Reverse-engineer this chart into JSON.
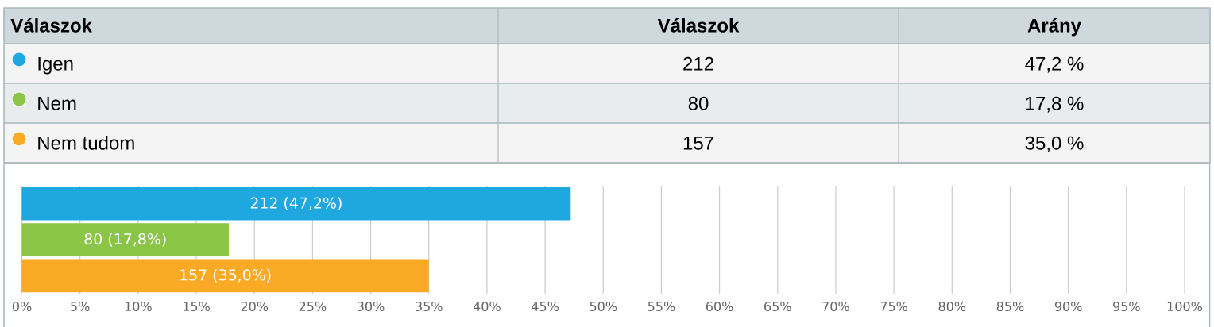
{
  "chart_data": [
    {
      "type": "other",
      "legend_title": "Válaszok",
      "categories": [
        "Igen",
        "Nem",
        "Nem tudom"
      ],
      "colors": [
        "#1fa8e0",
        "#8bc548",
        "#fbaa25"
      ],
      "data_labels": true,
      "series": [
        {
          "name": "Válaszok",
          "colors": [
            "#f4f4f4",
            "#e8ecec",
            "#f4f4f4"
          ],
          "values": [
            212,
            80,
            157
          ]
        },
        {
          "name": "Arány",
          "values": [
            47.2,
            17.8,
            35.0
          ],
          "value_labels": [
            "47,2 %",
            "17,8 %",
            "35,0 %"
          ]
        }
      ]
    },
    {
      "type": "bar",
      "orientation": "horizontal",
      "categories": [
        null,
        null,
        null
      ],
      "colors": [
        "#1fa8e0",
        "#8bc548",
        "#fbaa25"
      ],
      "values": [
        47.2,
        17.8,
        35.0
      ],
      "value_labels": [
        "212 (47,2%)",
        "80 (17,8%)",
        "157 (35,0%)"
      ],
      "xlim": [
        0,
        100
      ],
      "xticks": [
        {
          "value": 0,
          "label": "0%"
        },
        {
          "value": 5,
          "label": "5%"
        },
        {
          "value": 10,
          "label": "10%"
        },
        {
          "value": 15,
          "label": "15%"
        },
        {
          "value": 20,
          "label": "20%"
        },
        {
          "value": 25,
          "label": "25%"
        },
        {
          "value": 30,
          "label": "30%"
        },
        {
          "value": 35,
          "label": "35%"
        },
        {
          "value": 40,
          "label": "40%"
        },
        {
          "value": 45,
          "label": "45%"
        },
        {
          "value": 50,
          "label": "50%"
        },
        {
          "value": 55,
          "label": "55%"
        },
        {
          "value": 60,
          "label": "60%"
        },
        {
          "value": 65,
          "label": "65%"
        },
        {
          "value": 70,
          "label": "70%"
        },
        {
          "value": 75,
          "label": "75%"
        },
        {
          "value": 80,
          "label": "80%"
        },
        {
          "value": 85,
          "label": "85%"
        },
        {
          "value": 90,
          "label": "90%"
        },
        {
          "value": 95,
          "label": "95%"
        },
        {
          "value": 100,
          "label": "100%"
        }
      ],
      "grid": "x"
    }
  ]
}
